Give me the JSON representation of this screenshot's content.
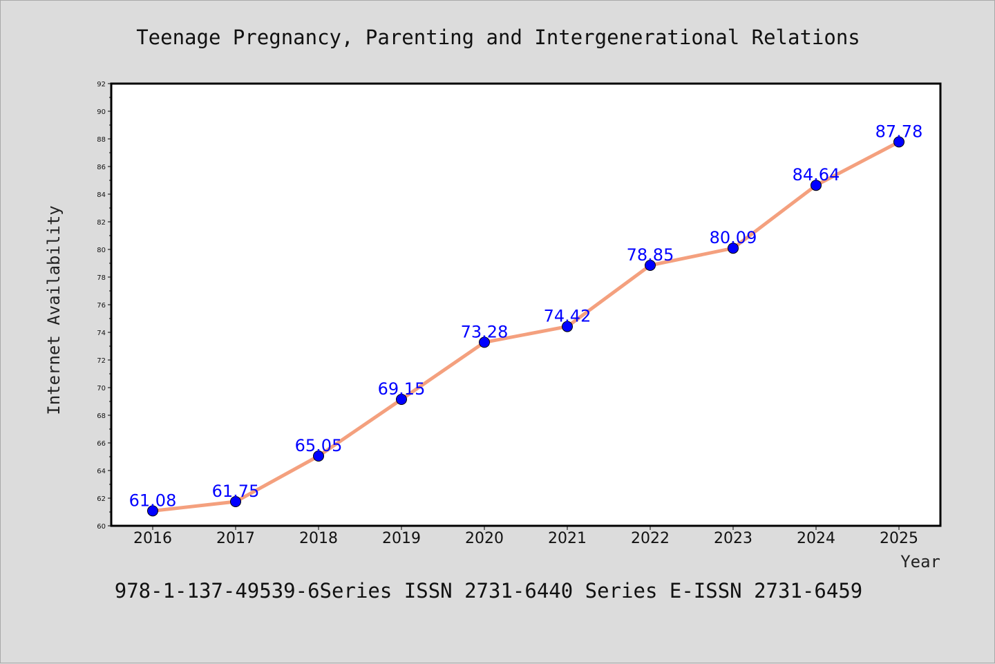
{
  "chart_data": {
    "type": "line",
    "title": "Teenage Pregnancy, Parenting and Intergenerational Relations",
    "xlabel": "Year",
    "ylabel": "Internet Availability",
    "x": [
      "2016",
      "2017",
      "2018",
      "2019",
      "2020",
      "2021",
      "2022",
      "2023",
      "2024",
      "2025"
    ],
    "y": [
      61.08,
      61.75,
      65.05,
      69.15,
      73.28,
      74.42,
      78.85,
      80.09,
      84.64,
      87.78
    ],
    "data_labels": [
      "61.08",
      "61.75",
      "65.05",
      "69.15",
      "73.28",
      "74.42",
      "78.85",
      "80.09",
      "84.64",
      "87.78"
    ],
    "ylim": [
      60,
      92
    ],
    "yticks": [
      "60",
      "62",
      "64",
      "66",
      "68",
      "70",
      "72",
      "74",
      "76",
      "78",
      "80",
      "82",
      "84",
      "86",
      "88",
      "90",
      "92"
    ],
    "grid": false,
    "legend": "none",
    "line_color": "#f4a07e",
    "marker_color": "#0000ff",
    "label_color": "#0000ff"
  },
  "footer": {
    "text": "978-1-137-49539-6Series ISSN 2731-6440 Series E-ISSN 2731-6459"
  }
}
